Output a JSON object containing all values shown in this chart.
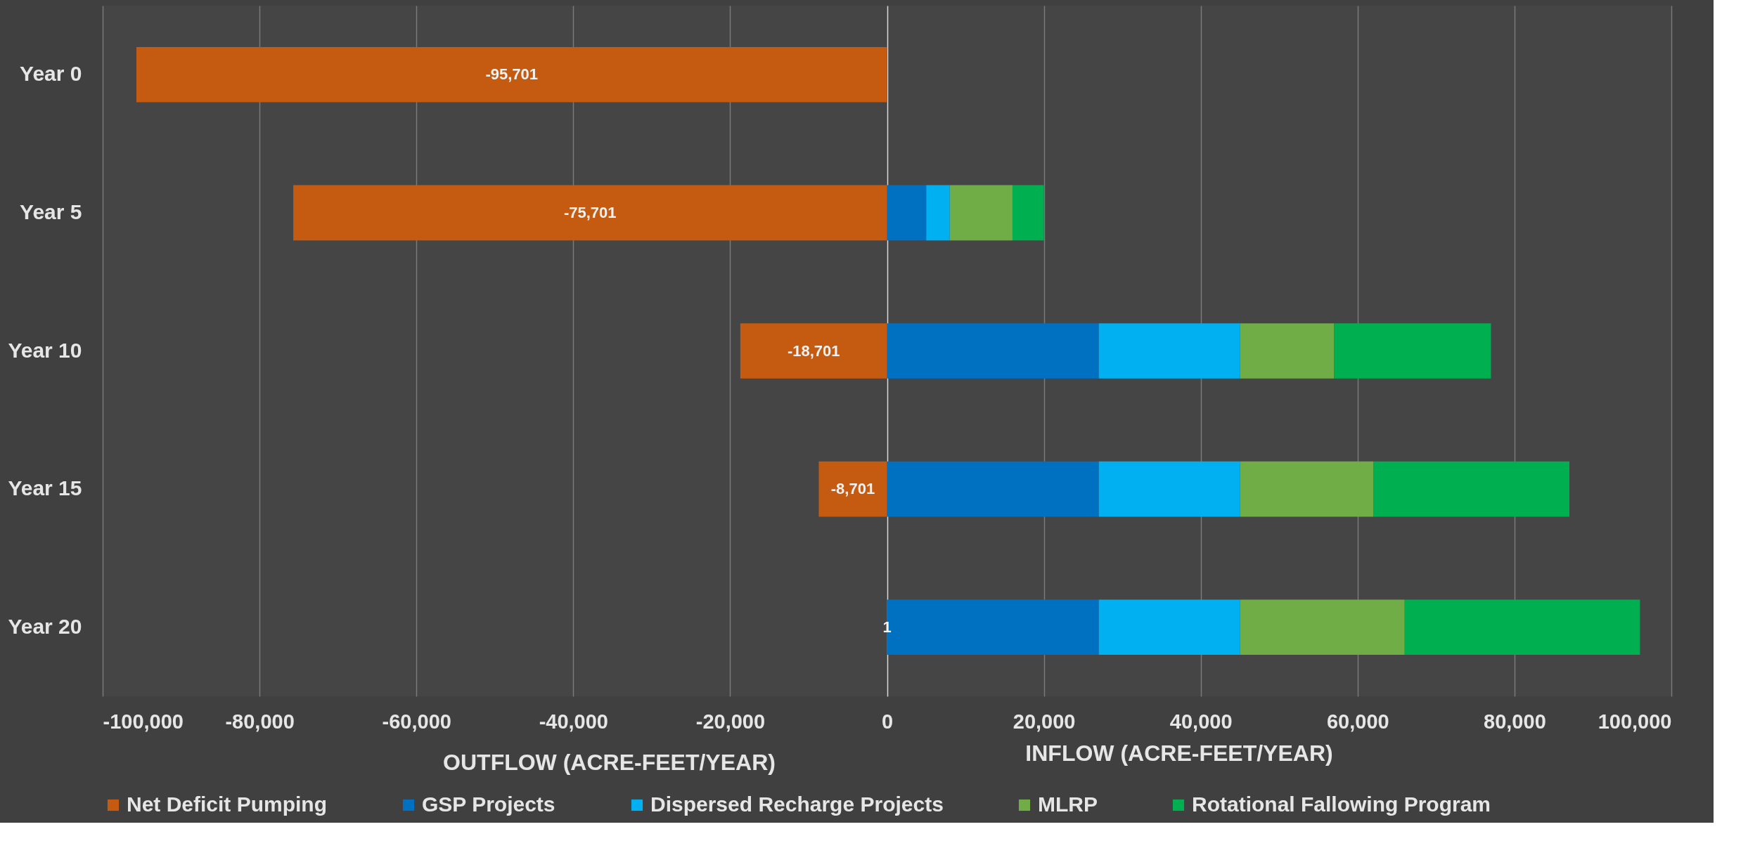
{
  "chart_data": {
    "type": "bar",
    "orientation": "horizontal",
    "stacked": true,
    "categories": [
      "Year 0",
      "Year 5",
      "Year 10",
      "Year 15",
      "Year 20"
    ],
    "series": [
      {
        "name": "Net Deficit Pumping",
        "color": "#c55a11",
        "values": [
          -95701,
          -75701,
          -18701,
          -8701,
          1
        ],
        "value_labels": [
          "-95,701",
          "-75,701",
          "-18,701",
          "-8,701",
          "1"
        ]
      },
      {
        "name": "GSP Projects",
        "color": "#0070c0",
        "values": [
          0,
          5000,
          27000,
          27000,
          27000
        ]
      },
      {
        "name": "Dispersed Recharge Projects",
        "color": "#00b0f0",
        "values": [
          0,
          3000,
          18000,
          18000,
          18000
        ]
      },
      {
        "name": "MLRP",
        "color": "#70ad47",
        "values": [
          0,
          8000,
          12000,
          17000,
          21000
        ]
      },
      {
        "name": "Rotational Fallowing Program",
        "color": "#00b050",
        "values": [
          0,
          4000,
          20000,
          25000,
          30000
        ]
      }
    ],
    "xlim": [
      -100000,
      100000
    ],
    "xticks": [
      {
        "value": -100000,
        "label": "-100,000"
      },
      {
        "value": -80000,
        "label": "-80,000"
      },
      {
        "value": -60000,
        "label": "-60,000"
      },
      {
        "value": -40000,
        "label": "-40,000"
      },
      {
        "value": -20000,
        "label": "-20,000"
      },
      0,
      {
        "value": 20000,
        "label": "20,000"
      },
      {
        "value": 40000,
        "label": "40,000"
      },
      {
        "value": 60000,
        "label": "60,000"
      },
      {
        "value": 80000,
        "label": "80,000"
      },
      {
        "value": 100000,
        "label": "100,000"
      }
    ],
    "xlabel": "OUTFLOW (ACRE-FEET/YEAR)",
    "annotations": [
      "INFLOW (ACRE-FEET/YEAR)"
    ],
    "grid": "x",
    "legend": "bottom"
  }
}
